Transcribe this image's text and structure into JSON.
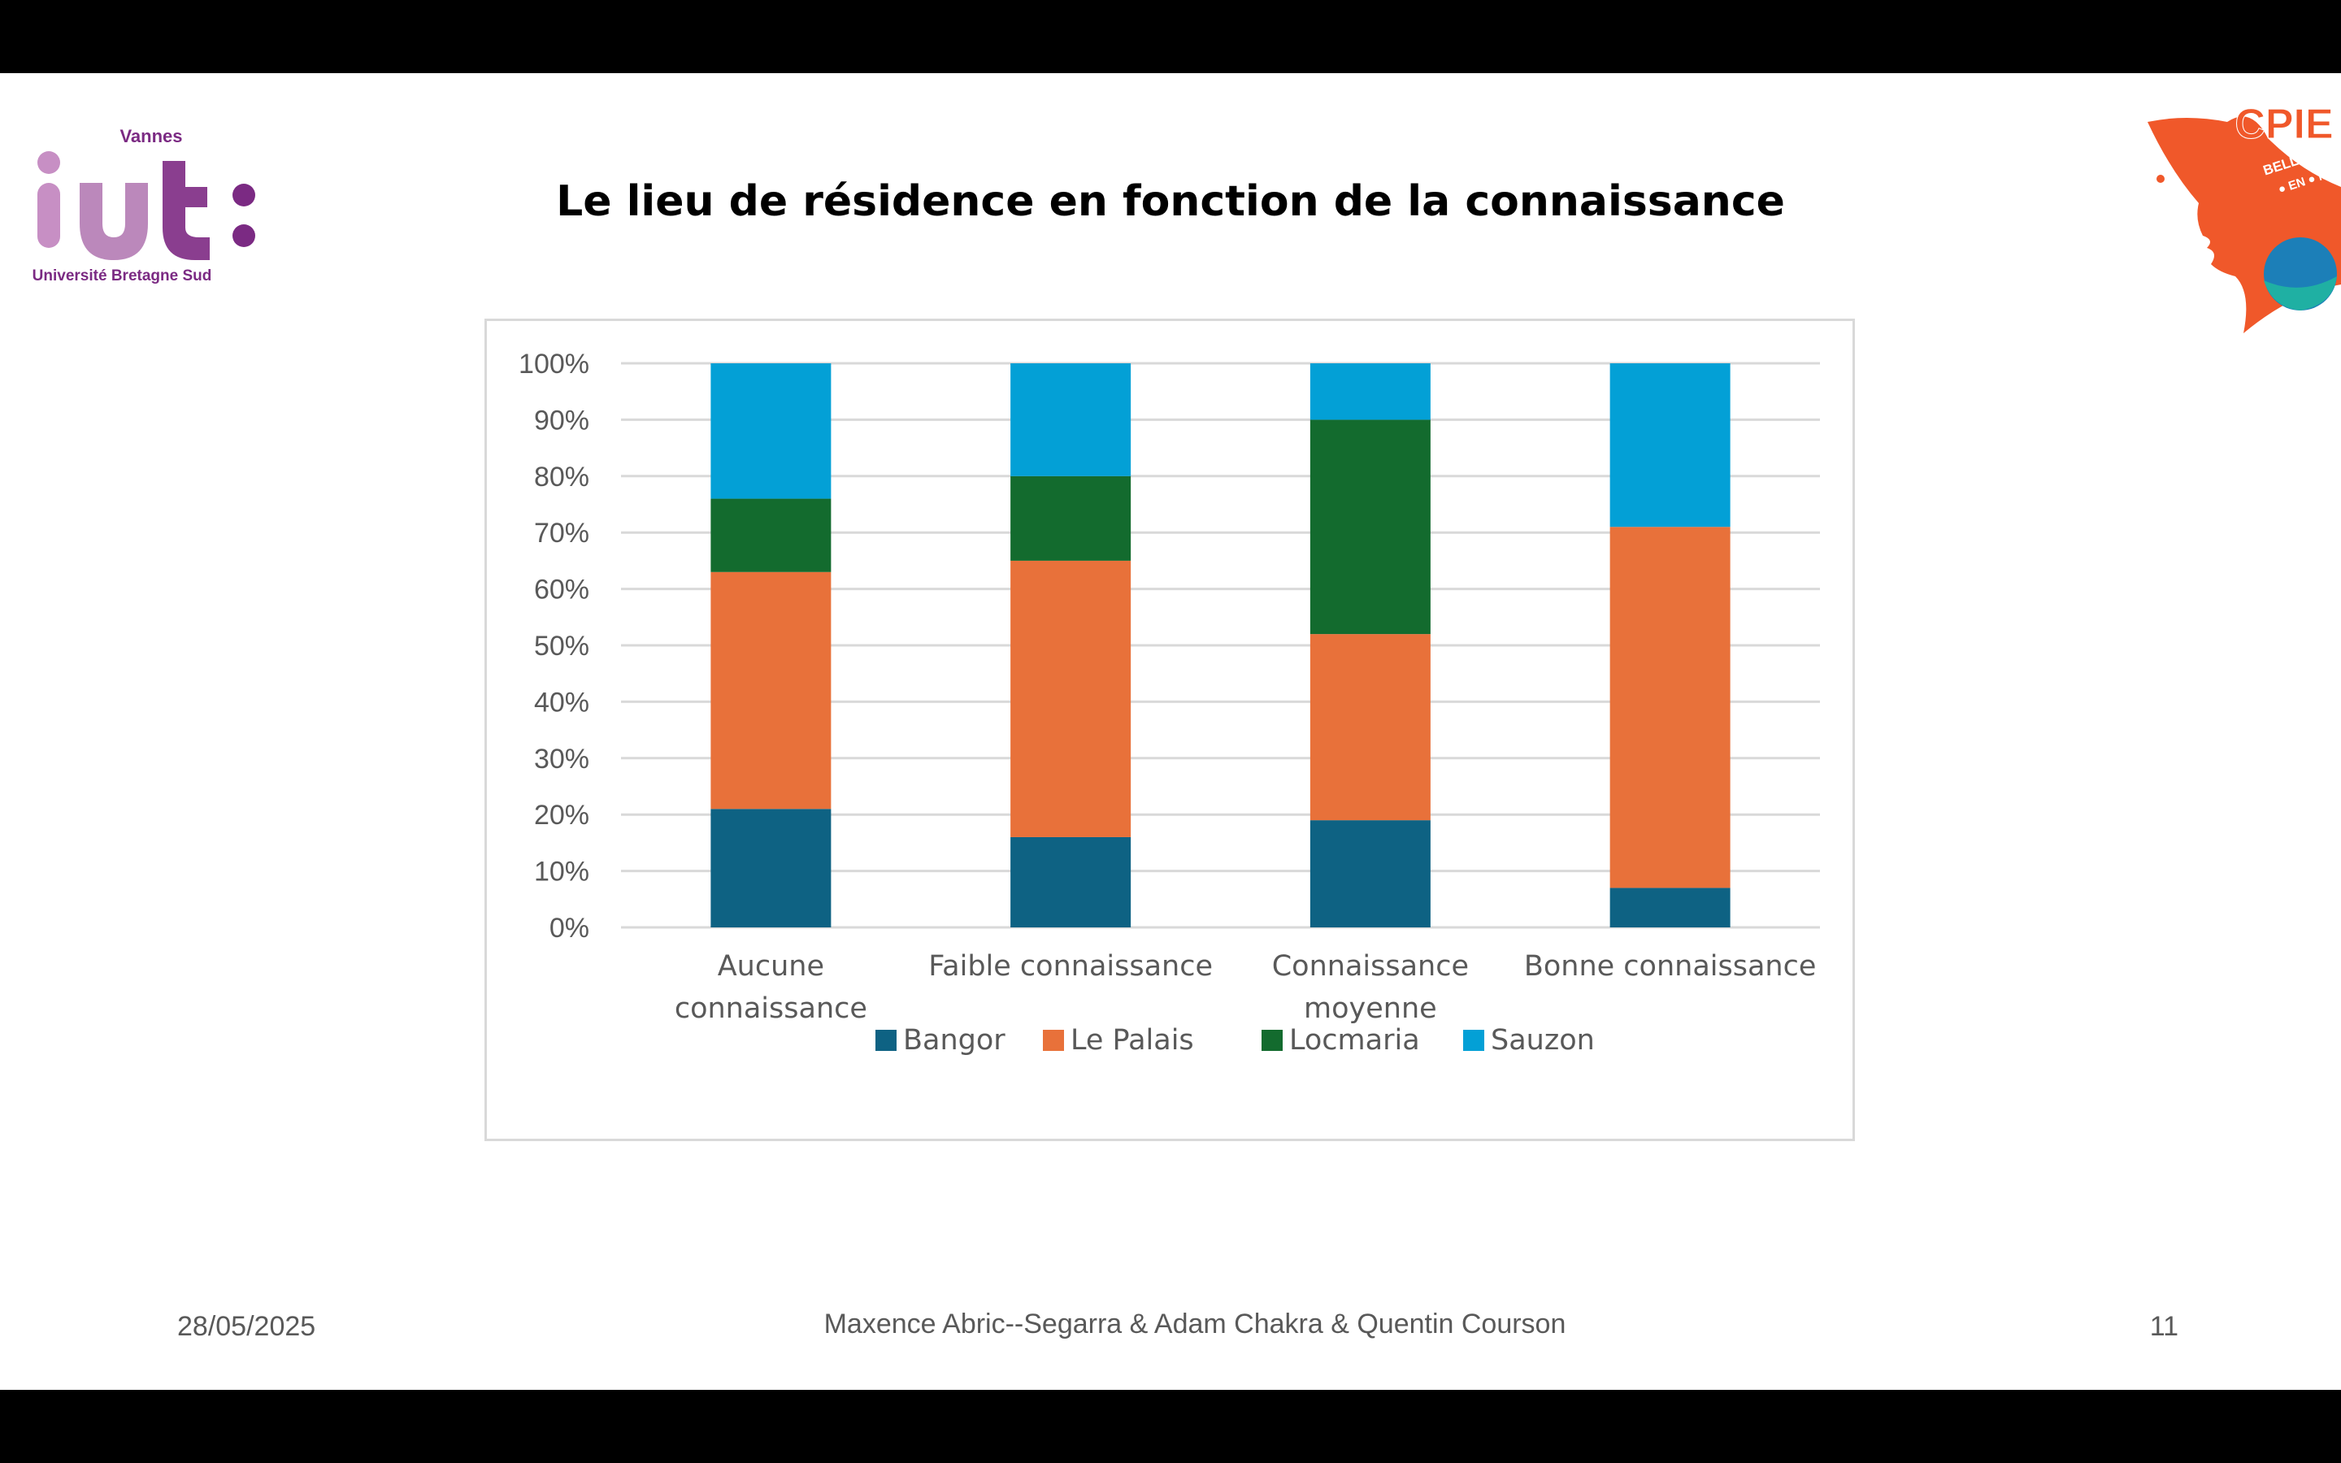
{
  "slide": {
    "title": "Le lieu de résidence en fonction de la connaissance",
    "footer": {
      "date": "28/05/2025",
      "authors": "Maxence Abric--Segarra & Adam Chakra & Quentin Courson",
      "page_number": "11"
    }
  },
  "logos": {
    "left": {
      "top_text": "Vannes",
      "letters": "iut",
      "bottom_text": "Université Bretagne Sud",
      "color": "#7b2a83"
    },
    "right": {
      "text": "CPIE",
      "subtext_1": "BELLE ● ILE",
      "subtext_2": "● EN ● MER",
      "color": "#f0582a"
    }
  },
  "chart_data": {
    "type": "bar",
    "stacked": "percent",
    "categories": [
      [
        "Aucune",
        "connaissance"
      ],
      [
        "Faible connaissance"
      ],
      [
        "Connaissance",
        "moyenne"
      ],
      [
        "Bonne connaissance"
      ]
    ],
    "series": [
      {
        "name": "Bangor",
        "color": "#0e6283",
        "values": [
          21,
          16,
          19,
          7
        ]
      },
      {
        "name": "Le Palais",
        "color": "#e8713a",
        "values": [
          42,
          49,
          33,
          64
        ]
      },
      {
        "name": "Locmaria",
        "color": "#136b2e",
        "values": [
          13,
          15,
          38,
          0
        ]
      },
      {
        "name": "Sauzon",
        "color": "#03a0d6",
        "values": [
          24,
          20,
          10,
          29
        ]
      }
    ],
    "y_ticks": [
      "0%",
      "10%",
      "20%",
      "30%",
      "40%",
      "50%",
      "60%",
      "70%",
      "80%",
      "90%",
      "100%"
    ],
    "ylim": [
      0,
      100
    ],
    "grid": true,
    "legend_position": "bottom"
  }
}
